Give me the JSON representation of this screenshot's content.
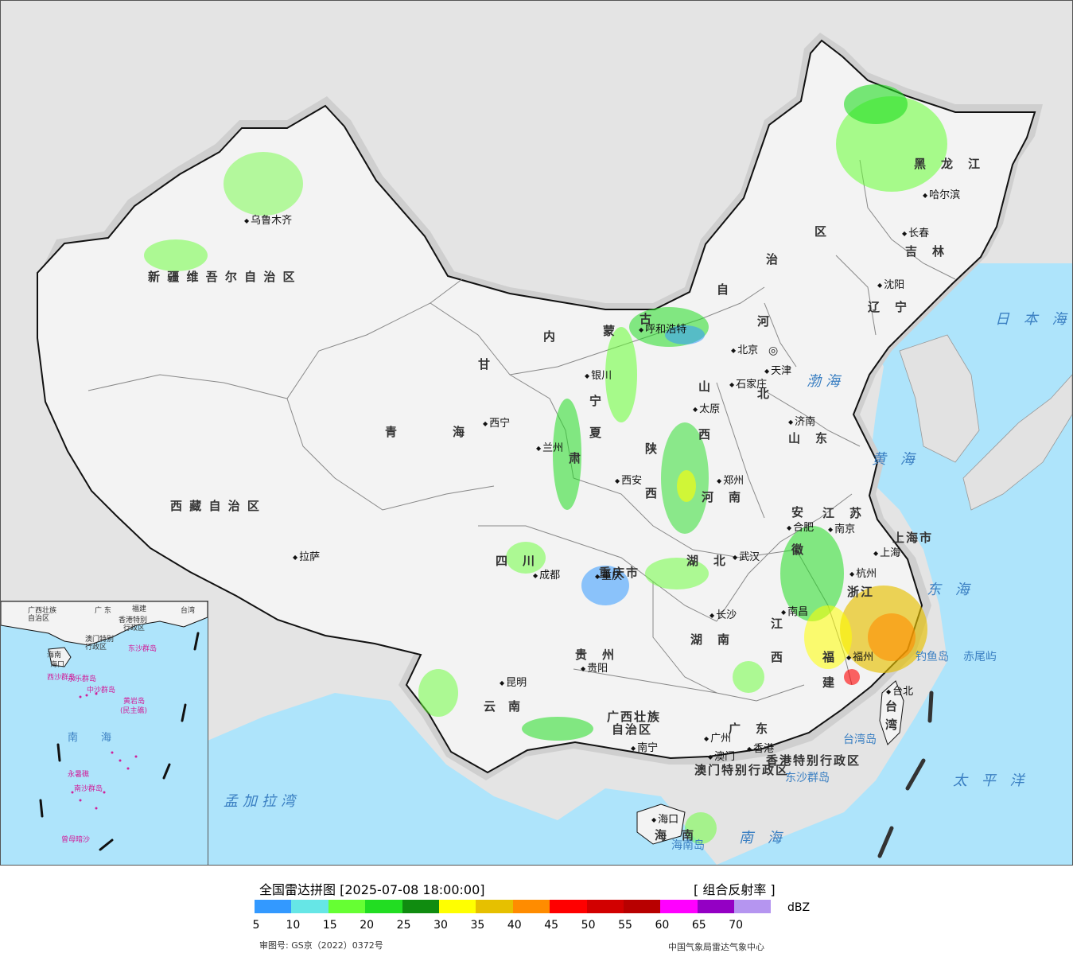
{
  "map": {
    "colors": {
      "ocean": "#aee4fb",
      "land": "#f3f3f3",
      "foreign_land": "#e2e2e2",
      "border": "#111111",
      "province_border": "#888888"
    },
    "region_labels": [
      {
        "name": "新 疆 维 吾 尔 自 治 区",
        "kind": "prov"
      },
      {
        "name": "西 藏 自 治 区",
        "kind": "prov"
      },
      {
        "name": "青　　　　海",
        "kind": "prov"
      },
      {
        "name": "甘",
        "kind": "prov"
      },
      {
        "name": "肃",
        "kind": "prov"
      },
      {
        "name": "内",
        "kind": "prov"
      },
      {
        "name": "蒙",
        "kind": "prov"
      },
      {
        "name": "古",
        "kind": "prov"
      },
      {
        "name": "自",
        "kind": "prov"
      },
      {
        "name": "治",
        "kind": "prov"
      },
      {
        "name": "区",
        "kind": "prov"
      },
      {
        "name": "黑　龙　江",
        "kind": "prov"
      },
      {
        "name": "吉　林",
        "kind": "prov"
      },
      {
        "name": "辽　宁",
        "kind": "prov"
      },
      {
        "name": "河",
        "kind": "prov"
      },
      {
        "name": "北",
        "kind": "prov"
      },
      {
        "name": "山",
        "kind": "prov"
      },
      {
        "name": "西",
        "kind": "prov"
      },
      {
        "name": "山　东",
        "kind": "prov"
      },
      {
        "name": "河　南",
        "kind": "prov"
      },
      {
        "name": "陕",
        "kind": "prov"
      },
      {
        "name": "西",
        "kind": "prov"
      },
      {
        "name": "宁",
        "kind": "prov"
      },
      {
        "name": "夏",
        "kind": "prov"
      },
      {
        "name": "四　川",
        "kind": "prov"
      },
      {
        "name": "重庆市",
        "kind": "prov"
      },
      {
        "name": "湖　北",
        "kind": "prov"
      },
      {
        "name": "湖　南",
        "kind": "prov"
      },
      {
        "name": "安",
        "kind": "prov"
      },
      {
        "name": "徽",
        "kind": "prov"
      },
      {
        "name": "江　苏",
        "kind": "prov"
      },
      {
        "name": "上海市",
        "kind": "prov"
      },
      {
        "name": "浙江",
        "kind": "prov"
      },
      {
        "name": "江",
        "kind": "prov"
      },
      {
        "name": "西",
        "kind": "prov"
      },
      {
        "name": "福",
        "kind": "prov"
      },
      {
        "name": "建",
        "kind": "prov"
      },
      {
        "name": "贵　州",
        "kind": "prov"
      },
      {
        "name": "云",
        "kind": "prov"
      },
      {
        "name": "南",
        "kind": "prov"
      },
      {
        "name": "广西壮族",
        "kind": "prov"
      },
      {
        "name": "自治区",
        "kind": "prov"
      },
      {
        "name": "广　东",
        "kind": "prov"
      },
      {
        "name": "海　南",
        "kind": "prov"
      },
      {
        "name": "台",
        "kind": "prov"
      },
      {
        "name": "湾",
        "kind": "prov"
      },
      {
        "name": "香港特别行政区",
        "kind": "prov"
      },
      {
        "name": "澳门特别行政区",
        "kind": "prov"
      }
    ],
    "cities": [
      "乌鲁木齐",
      "拉萨",
      "西宁",
      "兰州",
      "银川",
      "呼和浩特",
      "西安",
      "成都",
      "重庆",
      "贵阳",
      "昆明",
      "南宁",
      "广州",
      "澳门",
      "香港",
      "海口",
      "长沙",
      "武汉",
      "郑州",
      "太原",
      "石家庄",
      "北京",
      "天津",
      "济南",
      "南京",
      "合肥",
      "上海",
      "杭州",
      "南昌",
      "福州",
      "台北",
      "沈阳",
      "长春",
      "哈尔滨"
    ],
    "islands": [
      "东沙群岛",
      "海南岛",
      "台湾岛",
      "钓鱼岛",
      "赤尾屿"
    ],
    "seas": [
      "日 本 海",
      "渤海",
      "黄 海",
      "东 海",
      "太 平 洋",
      "南 海",
      "孟加拉湾"
    ],
    "capital_symbol": "◎"
  },
  "inset": {
    "labels": [
      "广西壮族",
      "自治区",
      "广 东",
      "福建",
      "台湾",
      "香港特别",
      "行政区",
      "澳门特别",
      "行政区",
      "东沙群岛",
      "海南",
      "海口",
      "西沙群岛",
      "永乐群岛",
      "中沙群岛",
      "黄岩岛",
      "(民主礁)",
      "南　海",
      "永暑礁",
      "南沙群岛",
      "曾母暗沙"
    ]
  },
  "legend": {
    "title": "全国雷达拼图 [2025-07-08 18:00:00]",
    "product": "[ 组合反射率 ]",
    "unit": "dBZ",
    "colors": [
      "#3399ff",
      "#66e6e6",
      "#66ff33",
      "#22dd22",
      "#108c10",
      "#ffff00",
      "#e6c000",
      "#ff8c00",
      "#ff0000",
      "#d20000",
      "#b80000",
      "#ff00ff",
      "#9400c4",
      "#b595f0"
    ],
    "ticks": [
      "5",
      "10",
      "15",
      "20",
      "25",
      "30",
      "35",
      "40",
      "45",
      "50",
      "55",
      "60",
      "65",
      "70"
    ],
    "review_number": "审图号: GS京（2022）0372号",
    "agency": "中国气象局雷达气象中心"
  }
}
